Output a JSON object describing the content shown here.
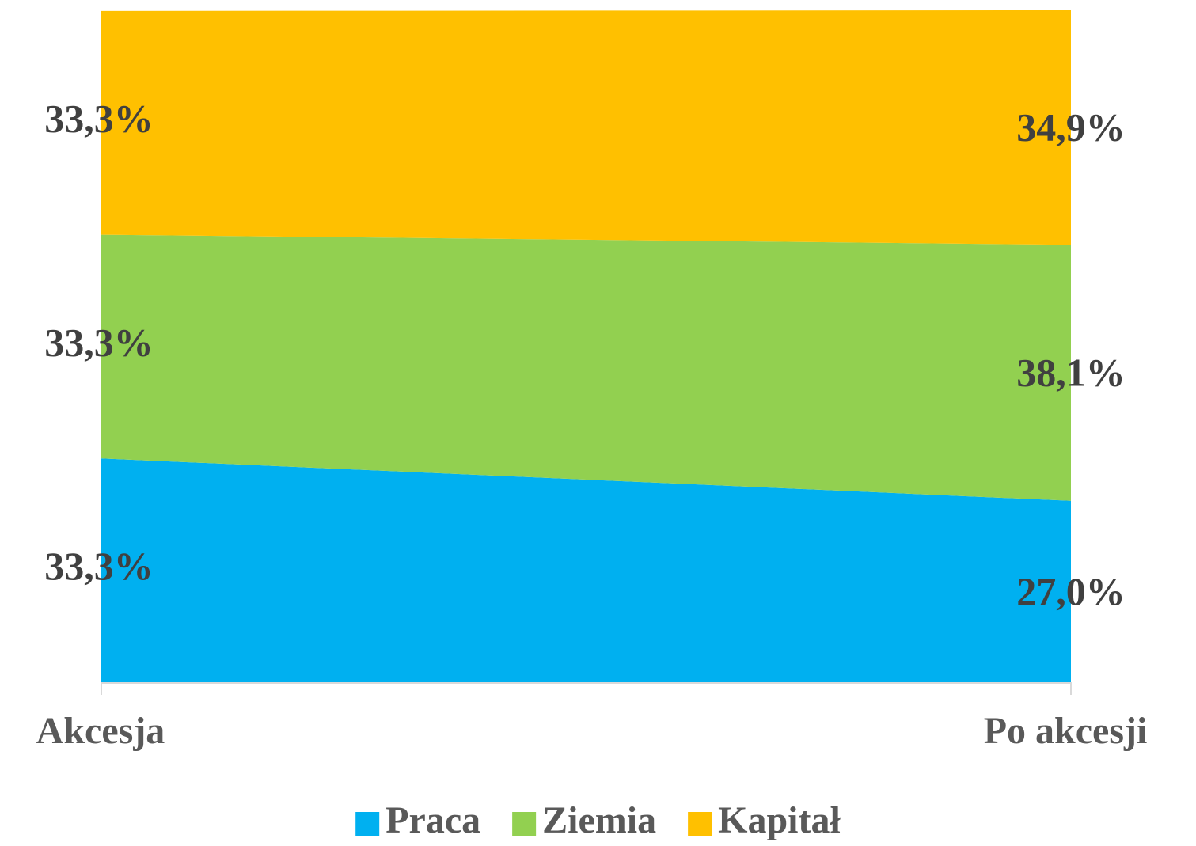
{
  "chart_data": {
    "type": "stacked-area",
    "categories": [
      "Akcesja",
      "Po akcesji"
    ],
    "series": [
      {
        "name": "Praca",
        "color": "#00b0f0",
        "values": [
          33.3,
          27.0
        ],
        "value_labels": [
          "33,3%",
          "27,0%"
        ]
      },
      {
        "name": "Ziemia",
        "color": "#92d050",
        "values": [
          33.3,
          38.1
        ],
        "value_labels": [
          "33,3%",
          "38,1%"
        ]
      },
      {
        "name": "Kapitał",
        "color": "#ffc000",
        "values": [
          33.3,
          34.9
        ],
        "value_labels": [
          "33,3%",
          "34,9%"
        ]
      }
    ],
    "ylim": [
      0,
      100
    ],
    "legend": "bottom"
  }
}
